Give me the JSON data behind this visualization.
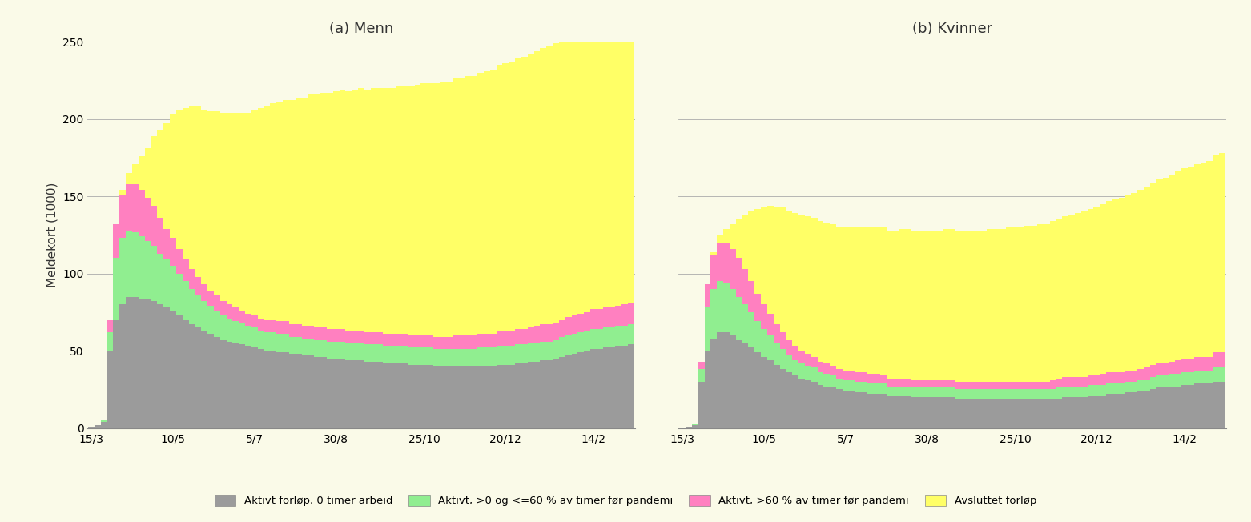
{
  "title_left": "(a) Menn",
  "title_right": "(b) Kvinner",
  "ylabel": "Meldekort (1000)",
  "background_color": "#FAFAE8",
  "colors": {
    "gray": "#9B9B9B",
    "green": "#90EE90",
    "pink": "#FF80C0",
    "yellow": "#FFFF66"
  },
  "legend_labels": [
    "Aktivt forløp, 0 timer arbeid",
    "Aktivt, >0 og <=60 % av timer før pandemi",
    "Aktivt, >60 % av timer før pandemi",
    "Avsluttet forløp"
  ],
  "xtick_labels": [
    "15/3",
    "10/5",
    "5/7",
    "30/8",
    "25/10",
    "20/12",
    "14/2"
  ],
  "xtick_positions": [
    0,
    13,
    26,
    39,
    53,
    66,
    80
  ],
  "ylim": [
    0,
    250
  ],
  "yticks": [
    0,
    50,
    100,
    150,
    200,
    250
  ],
  "n_bars": 87,
  "menn": {
    "gray": [
      1,
      2,
      4,
      50,
      70,
      80,
      85,
      85,
      84,
      83,
      82,
      80,
      78,
      76,
      73,
      70,
      67,
      65,
      63,
      61,
      59,
      57,
      56,
      55,
      54,
      53,
      52,
      51,
      50,
      50,
      49,
      49,
      48,
      48,
      47,
      47,
      46,
      46,
      45,
      45,
      45,
      44,
      44,
      44,
      43,
      43,
      43,
      42,
      42,
      42,
      42,
      41,
      41,
      41,
      41,
      40,
      40,
      40,
      40,
      40,
      40,
      40,
      40,
      40,
      40,
      41,
      41,
      41,
      42,
      42,
      43,
      43,
      44,
      44,
      45,
      46,
      47,
      48,
      49,
      50,
      51,
      51,
      52,
      52,
      53,
      53,
      54
    ],
    "green": [
      0,
      0,
      1,
      12,
      40,
      43,
      43,
      42,
      40,
      38,
      36,
      33,
      31,
      29,
      27,
      25,
      23,
      21,
      19,
      18,
      17,
      16,
      15,
      14,
      14,
      13,
      13,
      12,
      12,
      12,
      12,
      12,
      11,
      11,
      11,
      11,
      11,
      11,
      11,
      11,
      11,
      11,
      11,
      11,
      11,
      11,
      11,
      11,
      11,
      11,
      11,
      11,
      11,
      11,
      11,
      11,
      11,
      11,
      11,
      11,
      11,
      11,
      12,
      12,
      12,
      12,
      12,
      12,
      12,
      12,
      12,
      12,
      12,
      12,
      12,
      13,
      13,
      13,
      13,
      13,
      13,
      13,
      13,
      13,
      13,
      13,
      13
    ],
    "pink": [
      0,
      0,
      0,
      8,
      22,
      28,
      30,
      31,
      30,
      28,
      26,
      23,
      20,
      18,
      16,
      14,
      13,
      12,
      11,
      10,
      10,
      9,
      9,
      9,
      8,
      8,
      8,
      8,
      8,
      8,
      8,
      8,
      8,
      8,
      8,
      8,
      8,
      8,
      8,
      8,
      8,
      8,
      8,
      8,
      8,
      8,
      8,
      8,
      8,
      8,
      8,
      8,
      8,
      8,
      8,
      8,
      8,
      8,
      9,
      9,
      9,
      9,
      9,
      9,
      9,
      10,
      10,
      10,
      10,
      10,
      10,
      11,
      11,
      11,
      11,
      11,
      12,
      12,
      12,
      12,
      13,
      13,
      13,
      13,
      13,
      14,
      14
    ],
    "yellow": [
      0,
      0,
      0,
      0,
      0,
      3,
      7,
      13,
      22,
      32,
      45,
      57,
      68,
      80,
      90,
      98,
      105,
      110,
      113,
      116,
      119,
      122,
      124,
      126,
      128,
      130,
      133,
      136,
      138,
      140,
      142,
      143,
      145,
      147,
      148,
      150,
      151,
      152,
      153,
      154,
      155,
      155,
      156,
      157,
      157,
      158,
      158,
      159,
      159,
      160,
      160,
      161,
      162,
      163,
      163,
      164,
      165,
      165,
      166,
      167,
      168,
      168,
      169,
      170,
      171,
      172,
      173,
      174,
      175,
      176,
      177,
      178,
      179,
      180,
      181,
      182,
      183,
      184,
      185,
      186,
      187,
      188,
      189,
      190,
      191,
      191,
      192
    ]
  },
  "kvinner": {
    "gray": [
      0,
      1,
      2,
      30,
      50,
      58,
      62,
      62,
      60,
      57,
      55,
      52,
      49,
      46,
      44,
      41,
      38,
      36,
      34,
      32,
      31,
      30,
      28,
      27,
      26,
      25,
      24,
      24,
      23,
      23,
      22,
      22,
      22,
      21,
      21,
      21,
      21,
      20,
      20,
      20,
      20,
      20,
      20,
      20,
      19,
      19,
      19,
      19,
      19,
      19,
      19,
      19,
      19,
      19,
      19,
      19,
      19,
      19,
      19,
      19,
      19,
      20,
      20,
      20,
      20,
      21,
      21,
      21,
      22,
      22,
      22,
      23,
      23,
      24,
      24,
      25,
      26,
      26,
      27,
      27,
      28,
      28,
      29,
      29,
      29,
      30,
      30
    ],
    "green": [
      0,
      0,
      1,
      8,
      28,
      32,
      33,
      32,
      30,
      28,
      25,
      23,
      20,
      18,
      16,
      14,
      13,
      11,
      10,
      10,
      9,
      9,
      8,
      8,
      8,
      7,
      7,
      7,
      7,
      7,
      7,
      7,
      7,
      6,
      6,
      6,
      6,
      6,
      6,
      6,
      6,
      6,
      6,
      6,
      6,
      6,
      6,
      6,
      6,
      6,
      6,
      6,
      6,
      6,
      6,
      6,
      6,
      6,
      6,
      6,
      7,
      7,
      7,
      7,
      7,
      7,
      7,
      7,
      7,
      7,
      7,
      7,
      7,
      7,
      7,
      8,
      8,
      8,
      8,
      8,
      8,
      8,
      8,
      8,
      8,
      9,
      9
    ],
    "pink": [
      0,
      0,
      0,
      5,
      15,
      22,
      25,
      26,
      26,
      25,
      23,
      20,
      18,
      16,
      14,
      12,
      11,
      10,
      9,
      8,
      8,
      7,
      7,
      7,
      6,
      6,
      6,
      6,
      6,
      6,
      6,
      6,
      5,
      5,
      5,
      5,
      5,
      5,
      5,
      5,
      5,
      5,
      5,
      5,
      5,
      5,
      5,
      5,
      5,
      5,
      5,
      5,
      5,
      5,
      5,
      5,
      5,
      5,
      5,
      6,
      6,
      6,
      6,
      6,
      6,
      6,
      6,
      7,
      7,
      7,
      7,
      7,
      7,
      7,
      8,
      8,
      8,
      8,
      8,
      9,
      9,
      9,
      9,
      9,
      9,
      10,
      10
    ],
    "yellow": [
      0,
      0,
      0,
      0,
      0,
      2,
      5,
      9,
      16,
      25,
      35,
      45,
      55,
      63,
      70,
      76,
      81,
      84,
      86,
      88,
      89,
      90,
      91,
      91,
      92,
      92,
      93,
      93,
      94,
      94,
      95,
      95,
      96,
      96,
      96,
      97,
      97,
      97,
      97,
      97,
      97,
      97,
      98,
      98,
      98,
      98,
      98,
      98,
      98,
      99,
      99,
      99,
      100,
      100,
      100,
      101,
      101,
      102,
      102,
      103,
      103,
      104,
      105,
      106,
      107,
      108,
      109,
      110,
      111,
      112,
      113,
      114,
      115,
      116,
      117,
      118,
      119,
      120,
      121,
      122,
      123,
      124,
      125,
      126,
      127,
      128,
      129
    ]
  }
}
